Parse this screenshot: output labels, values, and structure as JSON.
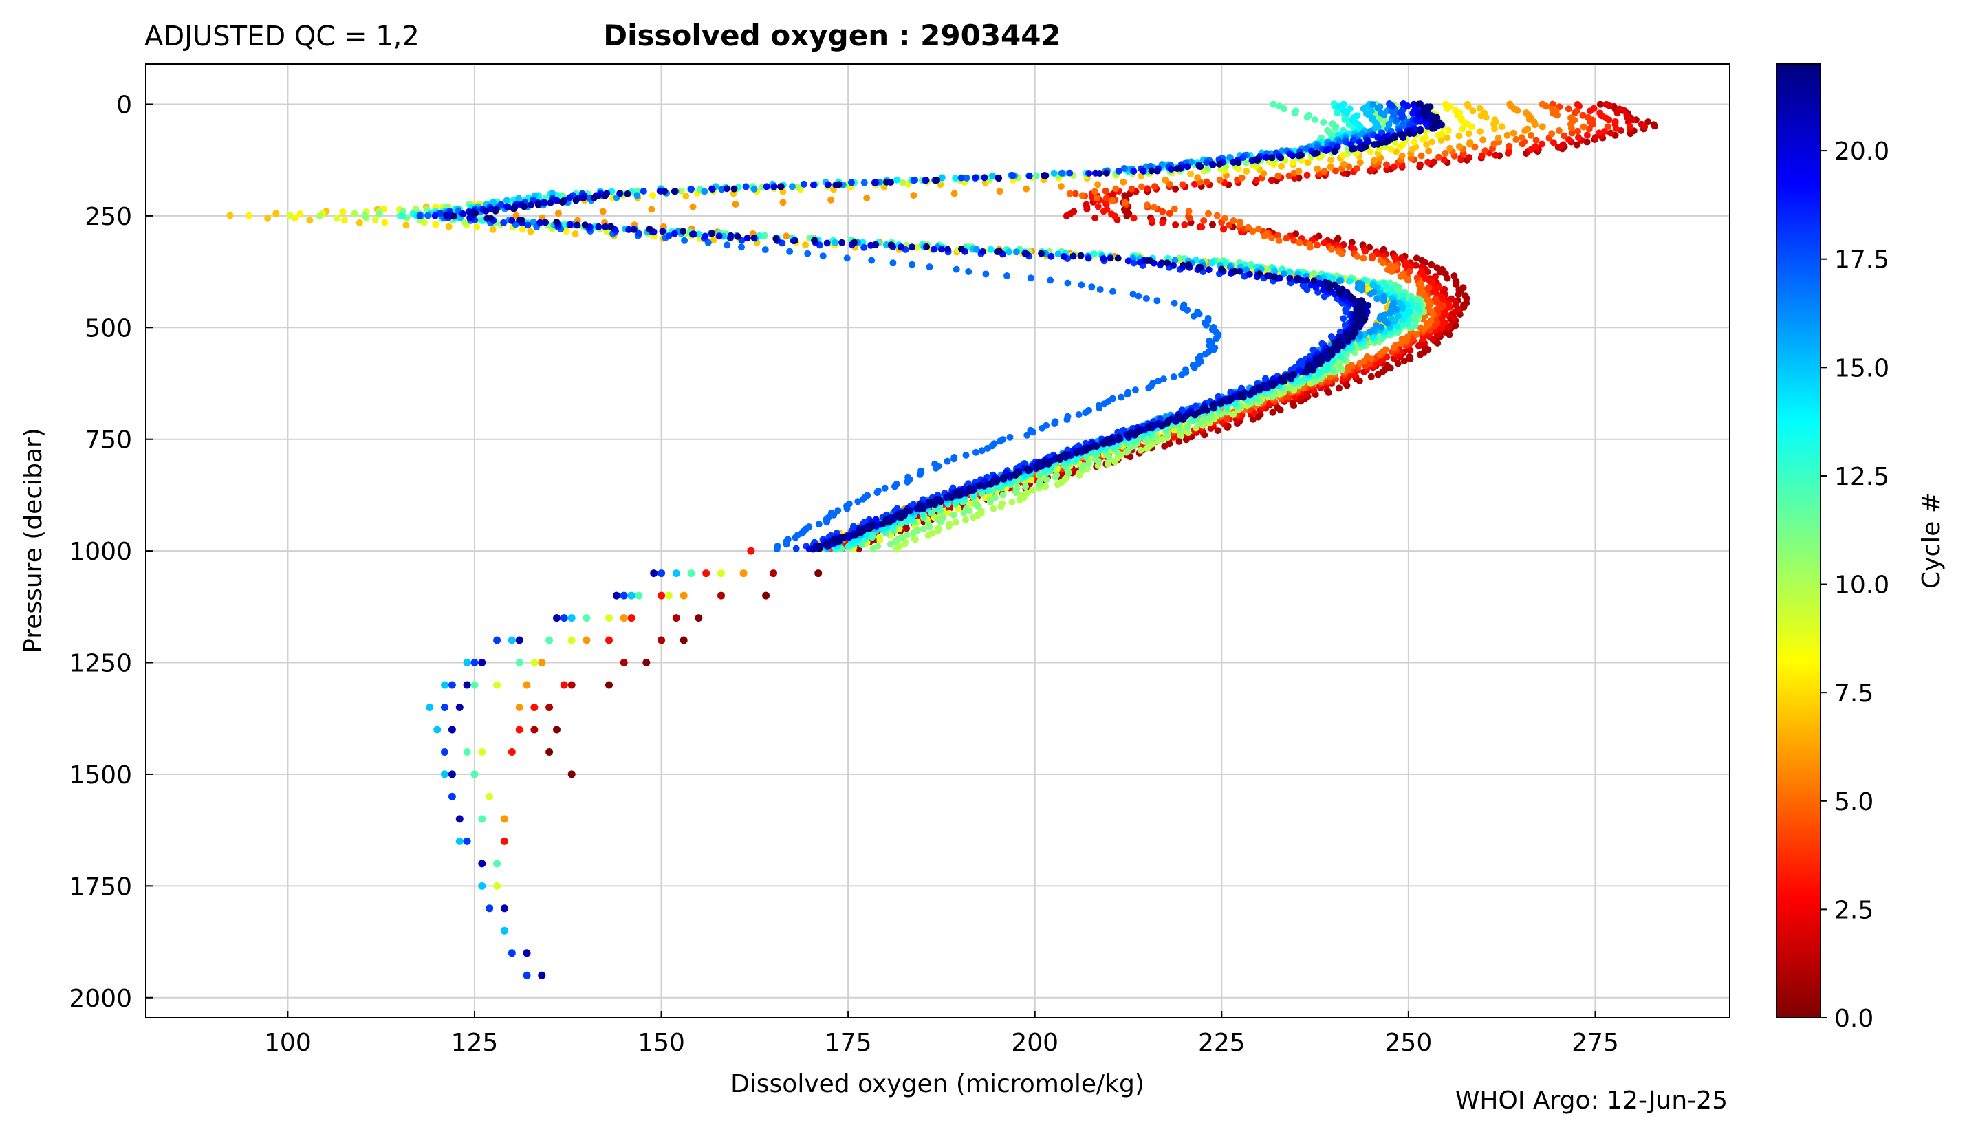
{
  "header": {
    "qc_label": "ADJUSTED QC = 1,2",
    "title": "Dissolved oxygen : 2903442"
  },
  "footer": {
    "credit": "WHOI Argo: 12-Jun-25"
  },
  "chart_data": {
    "type": "scatter",
    "title": "Dissolved oxygen : 2903442",
    "xlabel": "Dissolved oxygen  (micromole/kg)",
    "ylabel": "Pressure  (decibar)",
    "xlim": [
      81,
      293
    ],
    "ylim": [
      2045,
      -90
    ],
    "y_inverted": true,
    "grid": true,
    "x_ticks": [
      100,
      125,
      150,
      175,
      200,
      225,
      250,
      275
    ],
    "y_ticks": [
      0,
      250,
      500,
      750,
      1000,
      1250,
      1500,
      1750,
      2000
    ],
    "colorbar": {
      "label": "Cycle #",
      "range": [
        0,
        22
      ],
      "colormap": "jet",
      "ticks": [
        "0.0",
        "2.5",
        "5.0",
        "7.5",
        "10.0",
        "12.5",
        "15.0",
        "17.5",
        "20.0"
      ]
    },
    "profile_template": {
      "pressure": [
        0,
        50,
        100,
        150,
        200,
        250,
        300,
        350,
        400,
        450,
        500,
        550,
        600,
        700,
        800,
        900,
        1000
      ],
      "oxygen": [
        242,
        248,
        237,
        215,
        175,
        130,
        175,
        215,
        240,
        250,
        250,
        240,
        233,
        215,
        197,
        182,
        168
      ]
    },
    "series": [
      {
        "cycle": 1,
        "oxygen": [
          276,
          283,
          270,
          246,
          212,
          212,
          240,
          252,
          257,
          257,
          256,
          252,
          246,
          230,
          210,
          190,
          175
        ]
      },
      {
        "cycle": 2,
        "oxygen": [
          277,
          281,
          268,
          245,
          210,
          205,
          238,
          250,
          254,
          256,
          255,
          250,
          244,
          228,
          208,
          188,
          173
        ]
      },
      {
        "cycle": 3,
        "oxygen": [
          273,
          279,
          266,
          243,
          208,
          210,
          236,
          249,
          253,
          255,
          254,
          249,
          243,
          227,
          207,
          187,
          172
        ]
      },
      {
        "cycle": 4,
        "oxygen": [
          270,
          276,
          262,
          241,
          206,
          220,
          234,
          247,
          252,
          254,
          253,
          248,
          242,
          226,
          206,
          186,
          171
        ]
      },
      {
        "cycle": 5,
        "oxygen": [
          268,
          273,
          258,
          239,
          204,
          225,
          232,
          246,
          251,
          253,
          252,
          247,
          241,
          225,
          205,
          185,
          170
        ]
      },
      {
        "cycle": 6,
        "oxygen": [
          264,
          268,
          255,
          235,
          190,
          130,
          170,
          220,
          245,
          250,
          248,
          242,
          237,
          222,
          204,
          184,
          170
        ]
      },
      {
        "cycle": 7,
        "oxygen": [
          258,
          262,
          250,
          228,
          160,
          92,
          150,
          215,
          243,
          248,
          246,
          238,
          235,
          220,
          202,
          183,
          169
        ]
      },
      {
        "cycle": 8,
        "oxygen": [
          255,
          258,
          248,
          225,
          155,
          95,
          155,
          218,
          244,
          249,
          247,
          239,
          236,
          221,
          203,
          184,
          170
        ]
      },
      {
        "cycle": 9,
        "oxygen": [
          252,
          254,
          246,
          222,
          150,
          100,
          160,
          220,
          245,
          250,
          248,
          240,
          238,
          223,
          206,
          190,
          175
        ]
      },
      {
        "cycle": 10,
        "oxygen": [
          248,
          250,
          244,
          220,
          145,
          105,
          165,
          222,
          246,
          251,
          249,
          242,
          240,
          225,
          210,
          195,
          180
        ]
      },
      {
        "cycle": 11,
        "oxygen": [
          245,
          247,
          242,
          218,
          140,
          110,
          170,
          224,
          247,
          252,
          250,
          243,
          240,
          224,
          208,
          192,
          178
        ]
      },
      {
        "cycle": 12,
        "oxygen": [
          232,
          240,
          238,
          215,
          140,
          115,
          170,
          225,
          247,
          252,
          250,
          242,
          239,
          222,
          205,
          188,
          174
        ]
      },
      {
        "cycle": 13,
        "oxygen": [
          240,
          243,
          238,
          214,
          138,
          115,
          168,
          224,
          246,
          251,
          249,
          241,
          238,
          221,
          204,
          187,
          173
        ]
      },
      {
        "cycle": 14,
        "oxygen": [
          241,
          244,
          237,
          212,
          135,
          118,
          165,
          222,
          245,
          250,
          248,
          240,
          237,
          220,
          203,
          186,
          172
        ]
      },
      {
        "cycle": 15,
        "oxygen": [
          244,
          246,
          236,
          210,
          135,
          118,
          162,
          220,
          244,
          249,
          247,
          239,
          236,
          219,
          202,
          185,
          171
        ]
      },
      {
        "cycle": 16,
        "oxygen": [
          246,
          248,
          236,
          210,
          150,
          120,
          165,
          218,
          243,
          248,
          246,
          238,
          235,
          218,
          201,
          184,
          170
        ]
      },
      {
        "cycle": 17,
        "oxygen": [
          247,
          250,
          236,
          210,
          145,
          118,
          150,
          178,
          205,
          220,
          224,
          224,
          220,
          205,
          188,
          175,
          165
        ]
      },
      {
        "cycle": 18,
        "oxygen": [
          248,
          251,
          238,
          212,
          140,
          118,
          155,
          210,
          235,
          242,
          242,
          238,
          234,
          218,
          200,
          183,
          168
        ]
      },
      {
        "cycle": 19,
        "oxygen": [
          250,
          252,
          240,
          214,
          142,
          120,
          160,
          212,
          237,
          243,
          243,
          239,
          235,
          219,
          201,
          184,
          169
        ]
      },
      {
        "cycle": 20,
        "oxygen": [
          251,
          253,
          242,
          215,
          143,
          121,
          162,
          214,
          238,
          244,
          243,
          240,
          236,
          220,
          202,
          185,
          170
        ]
      },
      {
        "cycle": 21,
        "oxygen": [
          252,
          254,
          243,
          216,
          144,
          122,
          163,
          215,
          239,
          244,
          243,
          240,
          236,
          220,
          202,
          185,
          170
        ]
      },
      {
        "cycle": 22,
        "oxygen": [
          252,
          254,
          243,
          216,
          145,
          123,
          165,
          216,
          239,
          244,
          243,
          240,
          236,
          220,
          202,
          185,
          170
        ]
      }
    ],
    "deep_cycles": [
      {
        "cycle": 0,
        "points": [
          [
            171,
            1050
          ],
          [
            164,
            1100
          ],
          [
            155,
            1150
          ],
          [
            153,
            1200
          ],
          [
            148,
            1250
          ],
          [
            143,
            1300
          ],
          [
            136,
            1400
          ],
          [
            135,
            1450
          ],
          [
            138,
            1500
          ]
        ]
      },
      {
        "cycle": 1,
        "points": [
          [
            165,
            1050
          ],
          [
            158,
            1100
          ],
          [
            152,
            1150
          ],
          [
            150,
            1200
          ],
          [
            145,
            1250
          ],
          [
            138,
            1300
          ],
          [
            135,
            1350
          ],
          [
            133,
            1400
          ]
        ]
      },
      {
        "cycle": 3,
        "points": [
          [
            162,
            1000
          ],
          [
            156,
            1050
          ],
          [
            150,
            1100
          ],
          [
            146,
            1150
          ],
          [
            143,
            1200
          ],
          [
            137,
            1300
          ],
          [
            133,
            1350
          ],
          [
            131,
            1400
          ],
          [
            130,
            1450
          ],
          [
            129,
            1650
          ]
        ]
      },
      {
        "cycle": 6,
        "points": [
          [
            161,
            1050
          ],
          [
            153,
            1100
          ],
          [
            145,
            1150
          ],
          [
            140,
            1200
          ],
          [
            134,
            1250
          ],
          [
            132,
            1300
          ],
          [
            131,
            1350
          ],
          [
            129,
            1600
          ],
          [
            128,
            1700
          ]
        ]
      },
      {
        "cycle": 9,
        "points": [
          [
            158,
            1050
          ],
          [
            151,
            1100
          ],
          [
            143,
            1150
          ],
          [
            138,
            1200
          ],
          [
            133,
            1250
          ],
          [
            128,
            1300
          ],
          [
            126,
            1450
          ],
          [
            127,
            1550
          ],
          [
            128,
            1750
          ]
        ]
      },
      {
        "cycle": 12,
        "points": [
          [
            154,
            1050
          ],
          [
            147,
            1100
          ],
          [
            140,
            1150
          ],
          [
            135,
            1200
          ],
          [
            131,
            1250
          ],
          [
            125,
            1300
          ],
          [
            124,
            1450
          ],
          [
            125,
            1500
          ],
          [
            126,
            1600
          ],
          [
            128,
            1700
          ]
        ]
      },
      {
        "cycle": 15,
        "points": [
          [
            152,
            1050
          ],
          [
            146,
            1100
          ],
          [
            138,
            1150
          ],
          [
            130,
            1200
          ],
          [
            124,
            1250
          ],
          [
            121,
            1300
          ],
          [
            119,
            1350
          ],
          [
            120,
            1400
          ],
          [
            121,
            1500
          ],
          [
            123,
            1650
          ],
          [
            126,
            1750
          ],
          [
            129,
            1850
          ]
        ]
      },
      {
        "cycle": 18,
        "points": [
          [
            150,
            1050
          ],
          [
            145,
            1100
          ],
          [
            137,
            1150
          ],
          [
            128,
            1200
          ],
          [
            125,
            1250
          ],
          [
            122,
            1300
          ],
          [
            121,
            1350
          ],
          [
            121,
            1450
          ],
          [
            122,
            1550
          ],
          [
            124,
            1650
          ],
          [
            127,
            1800
          ],
          [
            130,
            1900
          ],
          [
            132,
            1950
          ]
        ]
      },
      {
        "cycle": 21,
        "points": [
          [
            149,
            1050
          ],
          [
            144,
            1100
          ],
          [
            136,
            1150
          ],
          [
            131,
            1200
          ],
          [
            126,
            1250
          ],
          [
            124,
            1300
          ],
          [
            123,
            1350
          ],
          [
            122,
            1400
          ],
          [
            122,
            1500
          ],
          [
            123,
            1600
          ],
          [
            126,
            1700
          ],
          [
            129,
            1800
          ],
          [
            132,
            1900
          ],
          [
            134,
            1950
          ]
        ]
      }
    ]
  }
}
